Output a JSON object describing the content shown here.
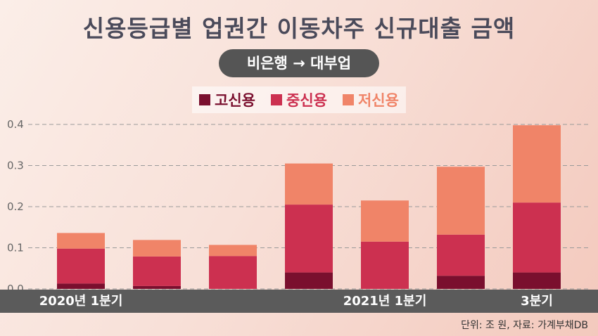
{
  "title": "신용등급별 업권간 이동차주 신규대출 금액",
  "subtitle": "비은행 → 대부업",
  "source": "단위: 조 원, 자료: 가계부채DB",
  "colors": {
    "high": "#7a0f2e",
    "mid": "#cc3050",
    "low": "#f08468"
  },
  "chart_data": {
    "type": "bar",
    "stacked": true,
    "title": "신용등급별 업권간 이동차주 신규대출 금액",
    "subtitle": "비은행 → 대부업",
    "xlabel": "",
    "ylabel": "",
    "ylim": [
      0,
      0.4
    ],
    "y_ticks": [
      "0.4",
      "0.3",
      "0.2",
      "0.1",
      "0.0"
    ],
    "grid": true,
    "legend": "top-center",
    "categories": [
      "2020년 1분기",
      "",
      "",
      "",
      "2021년 1분기",
      "",
      "3분기"
    ],
    "series": [
      {
        "name": "고신용",
        "color": "#7a0f2e",
        "values": [
          0.013,
          0.007,
          0.0,
          0.04,
          0.0,
          0.032,
          0.04
        ]
      },
      {
        "name": "중신용",
        "color": "#cc3050",
        "values": [
          0.085,
          0.072,
          0.08,
          0.165,
          0.115,
          0.1,
          0.17
        ]
      },
      {
        "name": "저신용",
        "color": "#f08468",
        "values": [
          0.038,
          0.04,
          0.027,
          0.1,
          0.1,
          0.165,
          0.188
        ]
      }
    ]
  }
}
